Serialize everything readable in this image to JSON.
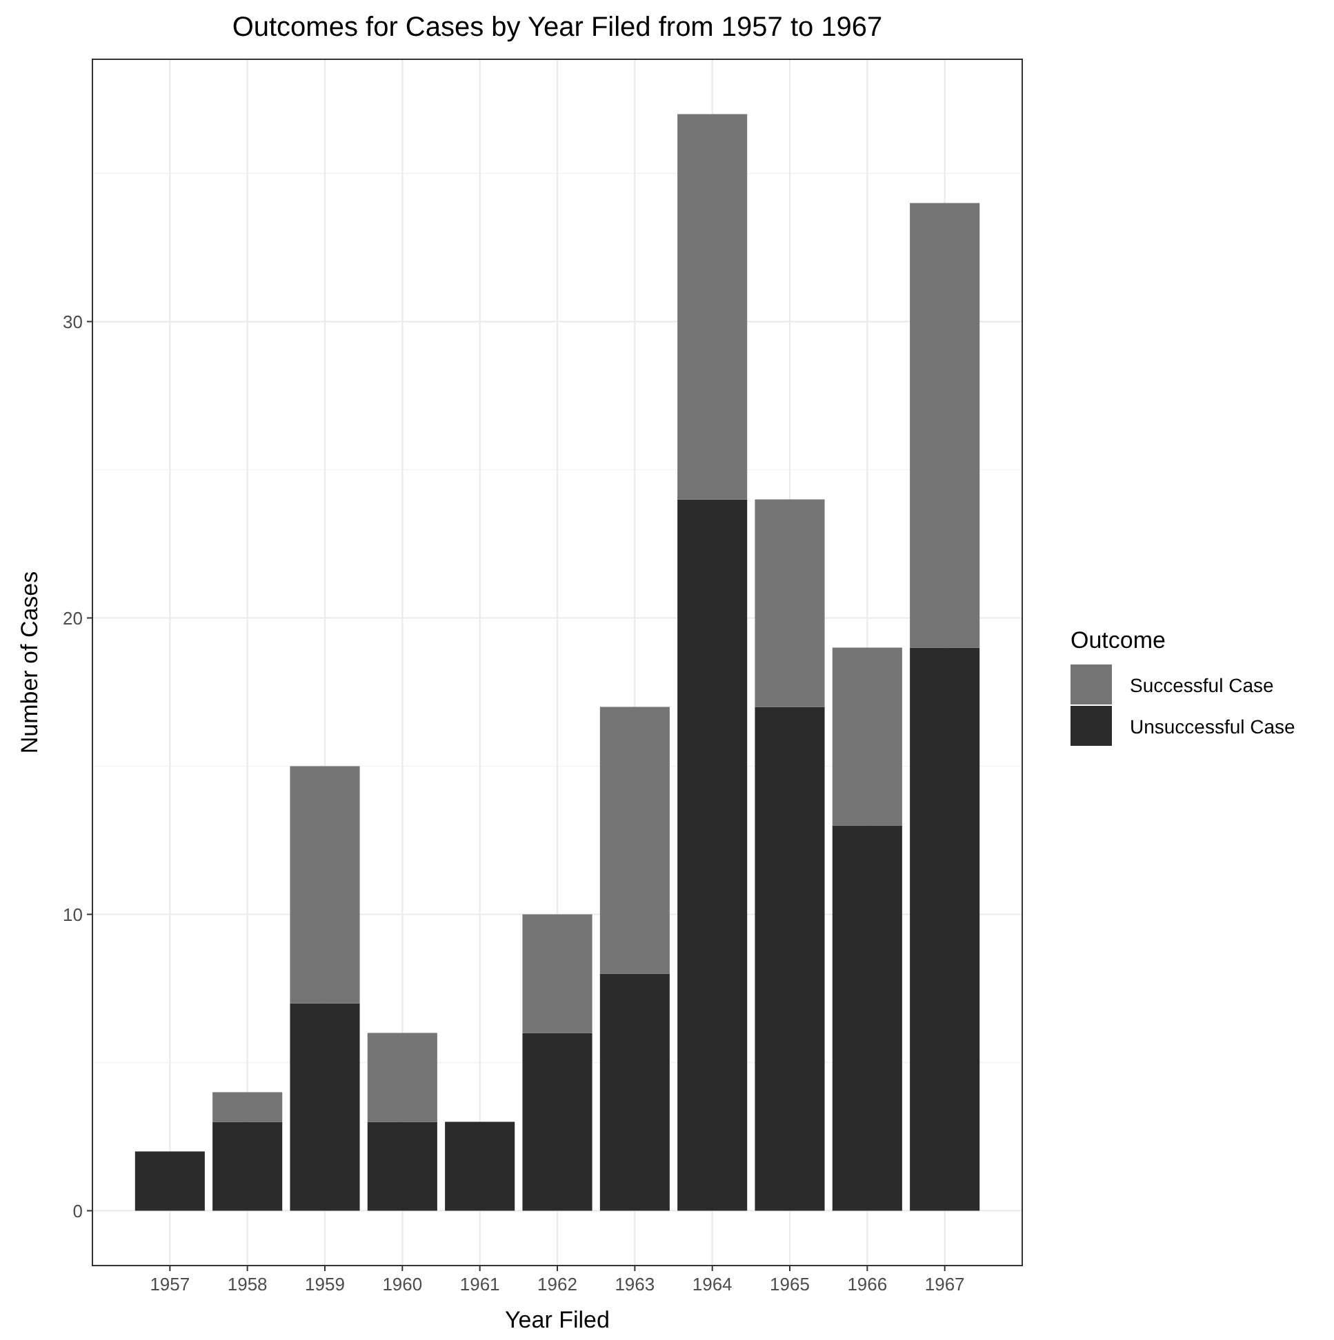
{
  "chart_data": {
    "type": "bar",
    "title": "Outcomes for Cases by Year Filed from 1957 to 1967",
    "xlabel": "Year Filed",
    "ylabel": "Number of Cases",
    "legend_title": "Outcome",
    "categories": [
      "1957",
      "1958",
      "1959",
      "1960",
      "1961",
      "1962",
      "1963",
      "1964",
      "1965",
      "1966",
      "1967"
    ],
    "series": [
      {
        "name": "Unsuccessful Case",
        "color": "#2b2b2b",
        "values": [
          2,
          3,
          7,
          3,
          3,
          6,
          8,
          24,
          17,
          13,
          19
        ]
      },
      {
        "name": "Successful Case",
        "color": "#757575",
        "values": [
          0,
          1,
          8,
          3,
          0,
          4,
          9,
          13,
          7,
          6,
          15
        ]
      }
    ],
    "stacked": true,
    "ylim": [
      -1.85,
      38.85
    ],
    "yticks": [
      0,
      10,
      20,
      30
    ],
    "grid": true,
    "legend": "right"
  }
}
